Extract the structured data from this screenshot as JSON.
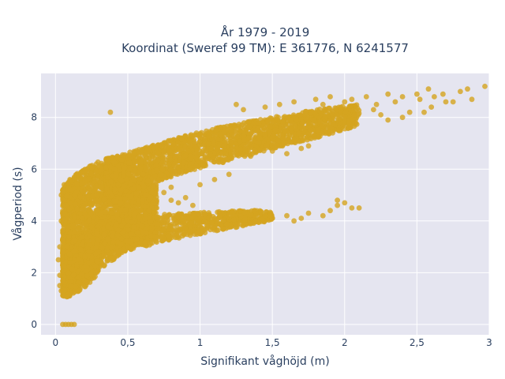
{
  "chart_data": {
    "type": "scatter",
    "title_lines": [
      "År 1979 - 2019",
      "Koordinat (Sweref 99 TM): E 361776, N 6241577"
    ],
    "xlabel": "Signifikant våghöjd (m)",
    "ylabel": "Vågperiod (s)",
    "xlim": [
      -0.1,
      3.0
    ],
    "ylim": [
      -0.4,
      9.7
    ],
    "x_ticks": [
      0,
      0.5,
      1,
      1.5,
      2,
      2.5,
      3
    ],
    "x_tick_labels": [
      "0",
      "0,5",
      "1",
      "1,5",
      "2",
      "2,5",
      "3"
    ],
    "y_ticks": [
      0,
      2,
      4,
      6,
      8
    ],
    "y_tick_labels": [
      "0",
      "2",
      "4",
      "6",
      "8"
    ],
    "grid": true,
    "marker_color": "#d4a41f",
    "plot_bg": "#e5e5f0",
    "series": [
      {
        "bands": [
          {
            "x": [
              0.05,
              0.1,
              0.2,
              0.3,
              0.5,
              0.7
            ],
            "lo": [
              1.1,
              1.2,
              1.6,
              2.1,
              2.9,
              3.4
            ],
            "hi": [
              5.2,
              5.6,
              6.1,
              6.3,
              5.6,
              5.4
            ],
            "count": 2600
          },
          {
            "x": [
              0.35,
              0.6,
              0.9,
              1.2,
              1.5,
              1.8,
              2.1
            ],
            "lo": [
              4.9,
              5.3,
              5.9,
              6.3,
              6.8,
              7.2,
              7.7
            ],
            "hi": [
              6.4,
              6.8,
              7.3,
              7.7,
              8.0,
              8.3,
              8.5
            ],
            "count": 2200
          },
          {
            "x": [
              0.3,
              0.6,
              0.9,
              1.1,
              1.3,
              1.5
            ],
            "lo": [
              2.6,
              3.0,
              3.4,
              3.6,
              3.8,
              4.0
            ],
            "hi": [
              4.0,
              4.2,
              4.3,
              4.35,
              4.4,
              4.4
            ],
            "count": 900
          },
          {
            "x": [
              0.05,
              0.1,
              0.2,
              0.3
            ],
            "lo": [
              1.0,
              1.1,
              1.4,
              2.0
            ],
            "hi": [
              3.0,
              3.2,
              3.5,
              3.8
            ],
            "count": 500
          }
        ],
        "points": [
          [
            0.05,
            0
          ],
          [
            0.07,
            0
          ],
          [
            0.09,
            0
          ],
          [
            0.11,
            0
          ],
          [
            0.13,
            0
          ],
          [
            0.38,
            8.2
          ],
          [
            1.25,
            8.5
          ],
          [
            1.3,
            8.3
          ],
          [
            1.45,
            8.4
          ],
          [
            1.55,
            8.5
          ],
          [
            1.65,
            8.6
          ],
          [
            1.8,
            8.7
          ],
          [
            1.85,
            8.5
          ],
          [
            1.9,
            8.8
          ],
          [
            2.0,
            8.6
          ],
          [
            2.05,
            8.7
          ],
          [
            2.15,
            8.8
          ],
          [
            2.2,
            8.3
          ],
          [
            2.22,
            8.5
          ],
          [
            2.3,
            8.9
          ],
          [
            2.35,
            8.6
          ],
          [
            2.4,
            8.8
          ],
          [
            2.45,
            8.2
          ],
          [
            2.5,
            8.9
          ],
          [
            2.52,
            8.7
          ],
          [
            2.58,
            9.1
          ],
          [
            2.62,
            8.8
          ],
          [
            2.68,
            8.9
          ],
          [
            2.7,
            8.6
          ],
          [
            2.75,
            8.6
          ],
          [
            2.8,
            9.0
          ],
          [
            2.85,
            9.1
          ],
          [
            2.88,
            8.7
          ],
          [
            2.97,
            9.2
          ],
          [
            2.4,
            8.0
          ],
          [
            2.3,
            7.9
          ],
          [
            2.6,
            8.4
          ],
          [
            2.55,
            8.2
          ],
          [
            2.25,
            8.1
          ],
          [
            1.7,
            6.8
          ],
          [
            1.75,
            6.9
          ],
          [
            1.6,
            6.6
          ],
          [
            1.5,
            6.7
          ],
          [
            1.35,
            6.5
          ],
          [
            1.2,
            5.8
          ],
          [
            1.1,
            5.6
          ],
          [
            1.0,
            5.4
          ],
          [
            0.8,
            5.3
          ],
          [
            0.75,
            5.1
          ],
          [
            0.8,
            4.8
          ],
          [
            0.9,
            4.9
          ],
          [
            0.95,
            4.6
          ],
          [
            0.85,
            4.7
          ],
          [
            0.7,
            4.5
          ],
          [
            0.6,
            4.8
          ],
          [
            0.65,
            4.4
          ],
          [
            0.55,
            4.3
          ],
          [
            0.5,
            4.6
          ],
          [
            0.45,
            4.7
          ],
          [
            1.5,
            4.1
          ],
          [
            1.45,
            4.2
          ],
          [
            1.6,
            4.2
          ],
          [
            1.65,
            4.0
          ],
          [
            1.7,
            4.1
          ],
          [
            1.9,
            4.4
          ],
          [
            1.95,
            4.6
          ],
          [
            2.0,
            4.7
          ],
          [
            2.05,
            4.5
          ],
          [
            1.85,
            4.2
          ],
          [
            1.75,
            4.3
          ],
          [
            2.1,
            4.5
          ],
          [
            1.95,
            4.8
          ],
          [
            0.02,
            2.5
          ],
          [
            0.03,
            3.0
          ],
          [
            0.04,
            4.0
          ],
          [
            0.04,
            5.0
          ],
          [
            0.03,
            1.9
          ],
          [
            0.03,
            1.5
          ],
          [
            0.04,
            1.3
          ],
          [
            0.06,
            5.4
          ],
          [
            0.1,
            5.6
          ]
        ]
      }
    ]
  }
}
